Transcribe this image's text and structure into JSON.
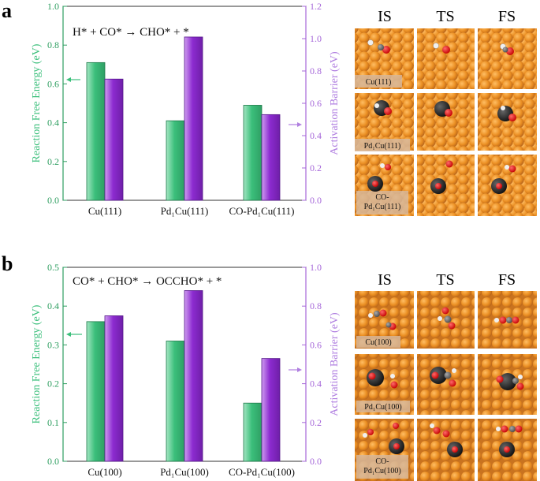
{
  "figure": {
    "panels": [
      {
        "letter": "a",
        "reaction": "H* + CO* → CHO* + *",
        "left_axis_label": "Reaction Free Energy (eV)",
        "right_axis_label": "Activation Barrier (eV)",
        "left_ticks": [
          "0.0",
          "0.2",
          "0.4",
          "0.6",
          "0.8",
          "1.0"
        ],
        "right_ticks": [
          "0.0",
          "0.2",
          "0.4",
          "0.6",
          "0.8",
          "1.0",
          "1.2"
        ],
        "state_headers": [
          "IS",
          "TS",
          "FS"
        ],
        "row_labels": [
          "Cu(111)",
          "Pd₁Cu(111)",
          "CO-\nPd₁Cu(111)"
        ]
      },
      {
        "letter": "b",
        "reaction": "CO* + CHO* → OCCHO* + *",
        "left_axis_label": "Reaction Free Energy (eV)",
        "right_axis_label": "Activation Barrier (eV)",
        "left_ticks": [
          "0.0",
          "0.1",
          "0.2",
          "0.3",
          "0.4",
          "0.5"
        ],
        "right_ticks": [
          "0.0",
          "0.2",
          "0.4",
          "0.6",
          "0.8",
          "1.0"
        ],
        "state_headers": [
          "IS",
          "TS",
          "FS"
        ],
        "row_labels": [
          "Cu(100)",
          "Pd₁Cu(100)",
          "CO-\nPd₁Cu(100)"
        ]
      }
    ]
  },
  "colors": {
    "green": "#3bbf7b",
    "green_light": "#a4e6c2",
    "purple": "#8c2bd0",
    "purple_light": "#cf9df0",
    "left_axis": "#2e9e60",
    "right_axis": "#a668d9",
    "copper": "#e8902a",
    "copper_dark": "#b8651a"
  },
  "chart_data": [
    {
      "type": "bar",
      "categories": [
        "Cu(111)",
        "Pd₁Cu(111)",
        "CO-Pd₁Cu(111)"
      ],
      "series": [
        {
          "values": [
            0.71,
            0.41,
            0.49
          ],
          "axis": "left"
        },
        {
          "values": [
            0.75,
            1.01,
            0.53
          ],
          "axis": "right"
        }
      ],
      "ylabel": "Reaction Free Energy (eV)",
      "y2label": "Activation Barrier (eV)",
      "ylim": [
        0,
        1.0
      ],
      "y2lim": [
        0,
        1.2
      ],
      "annotation": "H* + CO* → CHO* + *"
    },
    {
      "type": "bar",
      "categories": [
        "Cu(100)",
        "Pd₁Cu(100)",
        "CO-Pd₁Cu(100)"
      ],
      "series": [
        {
          "values": [
            0.36,
            0.31,
            0.15
          ],
          "axis": "left"
        },
        {
          "values": [
            0.75,
            0.88,
            0.53
          ],
          "axis": "right"
        }
      ],
      "ylabel": "Reaction Free Energy (eV)",
      "y2label": "Activation Barrier (eV)",
      "ylim": [
        0,
        0.5
      ],
      "y2lim": [
        0,
        1.0
      ],
      "annotation": "CO* + CHO* → OCCHO* + *"
    }
  ]
}
